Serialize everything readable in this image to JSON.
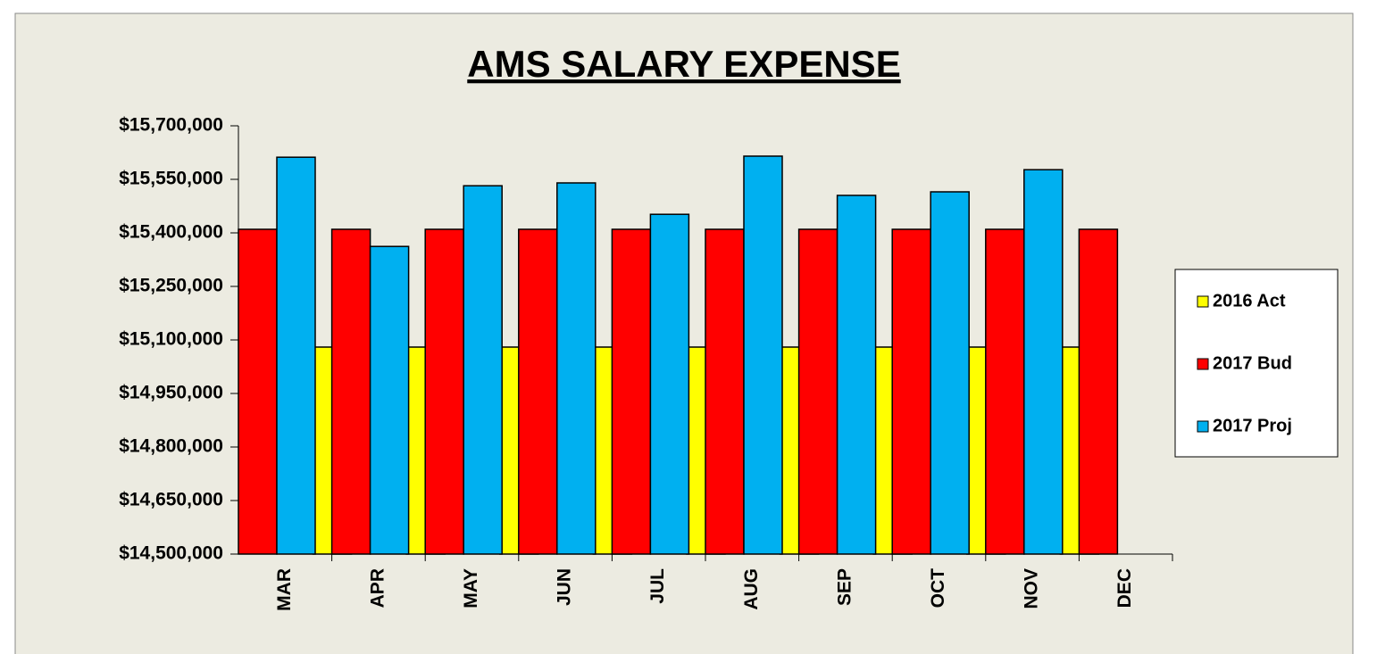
{
  "chart_data": {
    "type": "bar",
    "title": "AMS SALARY EXPENSE",
    "categories": [
      "MAR",
      "APR",
      "MAY",
      "JUN",
      "JUL",
      "AUG",
      "SEP",
      "OCT",
      "NOV",
      "DEC"
    ],
    "series": [
      {
        "name": "2016 Act",
        "color": "#ffff00",
        "values": [
          null,
          15080000,
          15080000,
          15080000,
          15080000,
          15080000,
          15080000,
          15080000,
          15080000,
          15080000
        ]
      },
      {
        "name": "2017 Bud",
        "color": "#ff0000",
        "values": [
          15410000,
          15410000,
          15410000,
          15410000,
          15410000,
          15410000,
          15410000,
          15410000,
          15410000,
          15410000
        ]
      },
      {
        "name": "2017 Proj",
        "color": "#00b0f0",
        "values": [
          15612000,
          15362000,
          15532000,
          15540000,
          15452000,
          15615000,
          15505000,
          15515000,
          15577000,
          null
        ]
      }
    ],
    "ylim": [
      14500000,
      15700000
    ],
    "yticks": [
      {
        "value": 14500000,
        "label": "$14,500,000"
      },
      {
        "value": 14650000,
        "label": "$14,650,000"
      },
      {
        "value": 14800000,
        "label": "$14,800,000"
      },
      {
        "value": 14950000,
        "label": "$14,950,000"
      },
      {
        "value": 15100000,
        "label": "$15,100,000"
      },
      {
        "value": 15250000,
        "label": "$15,250,000"
      },
      {
        "value": 15400000,
        "label": "$15,400,000"
      },
      {
        "value": 15550000,
        "label": "$15,550,000"
      },
      {
        "value": 15700000,
        "label": "$15,700,000"
      }
    ],
    "grid": false,
    "legend": "right"
  }
}
